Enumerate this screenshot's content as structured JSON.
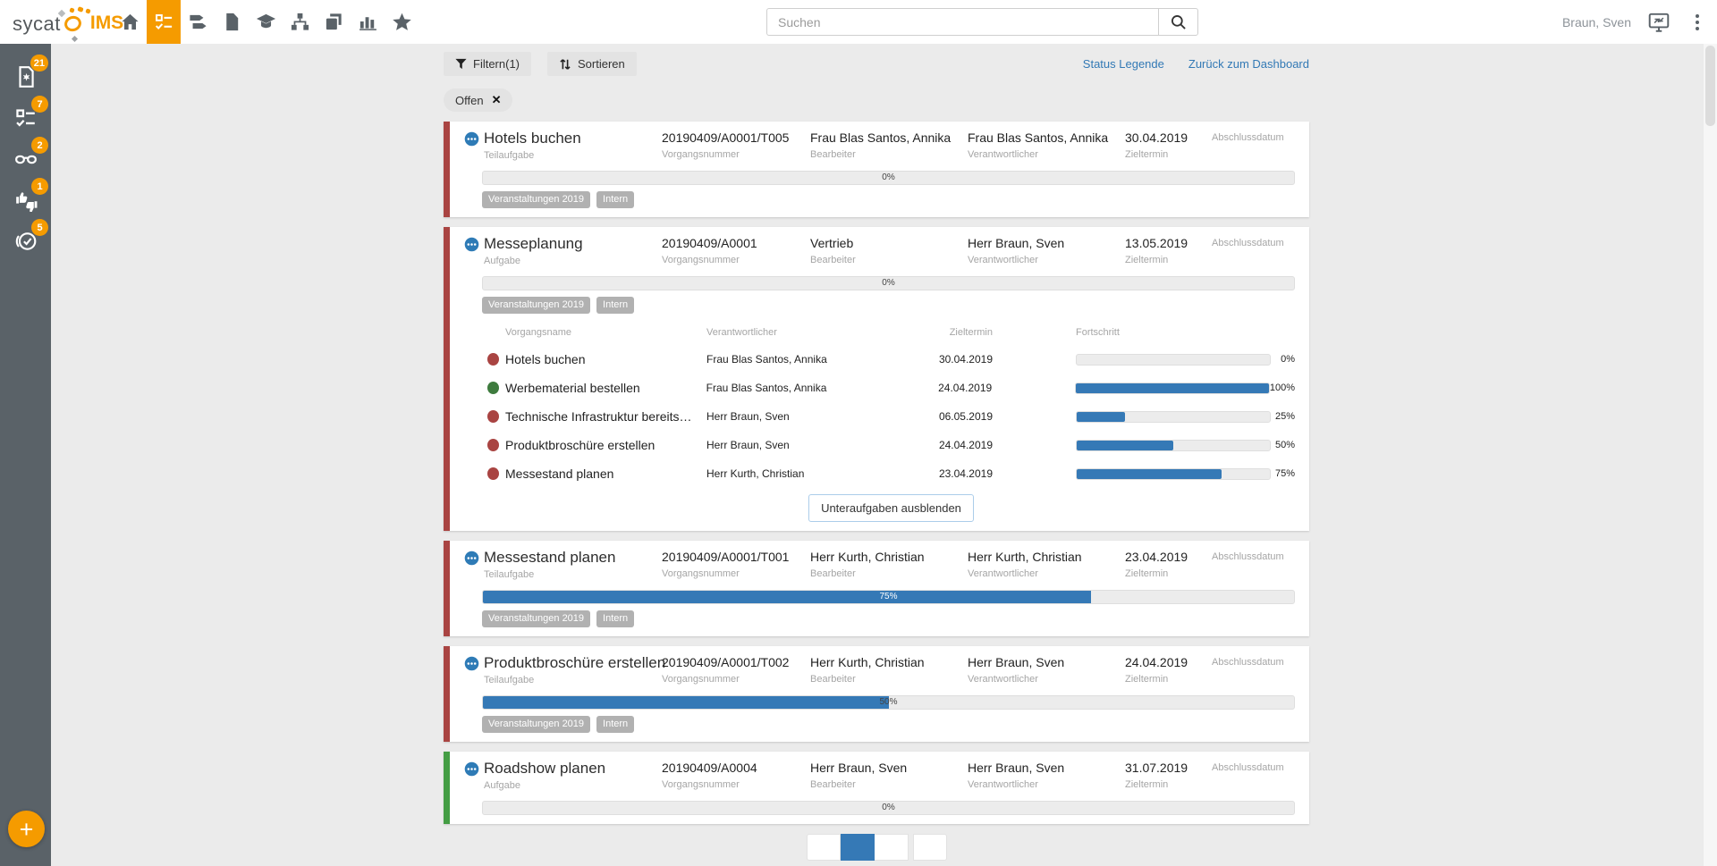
{
  "colors": {
    "accent_orange": "#f59b00",
    "accent_blue": "#3579b6",
    "status_red": "#a94442",
    "status_green": "#3e7b3e",
    "stripe_green": "#449d44",
    "sidebar_gray": "#5a6268"
  },
  "topbar": {
    "logo_part1": "sycat",
    "logo_part2": "IMS",
    "nav": [
      {
        "icon": "home",
        "active": false
      },
      {
        "icon": "tasks",
        "active": true
      },
      {
        "icon": "tags",
        "active": false
      },
      {
        "icon": "document",
        "active": false
      },
      {
        "icon": "education",
        "active": false
      },
      {
        "icon": "orgchart",
        "active": false
      },
      {
        "icon": "copies",
        "active": false
      },
      {
        "icon": "bar-chart",
        "active": false
      },
      {
        "icon": "star",
        "active": false
      }
    ],
    "search_placeholder": "Suchen",
    "user_name": "Braun, Sven"
  },
  "sidebar": {
    "items": [
      {
        "icon": "audit-file",
        "badge": "21"
      },
      {
        "icon": "tasks",
        "badge": "7"
      },
      {
        "icon": "glasses",
        "badge": "2"
      },
      {
        "icon": "thumbs",
        "badge": "1"
      },
      {
        "icon": "approval",
        "badge": "5"
      }
    ],
    "fab_label": "+"
  },
  "toolbar": {
    "filter_label": "Filtern(1)",
    "sort_label": "Sortieren",
    "legend_link": "Status Legende",
    "dashboard_link": "Zurück zum Dashboard",
    "active_filter_chip": "Offen"
  },
  "card_labels": {
    "number": "Vorgangsnummer",
    "editor": "Bearbeiter",
    "responsible": "Verantwortlicher",
    "due": "Zieltermin",
    "completed": "Abschlussdatum"
  },
  "cards": [
    {
      "title": "Hotels buchen",
      "type": "Teilaufgabe",
      "number": "20190409/A0001/T005",
      "editor": "Frau Blas Santos, Annika",
      "responsible": "Frau Blas Santos, Annika",
      "due": "30.04.2019",
      "completed": "",
      "progress": 0,
      "progress_label": "0%",
      "stripe": "red",
      "tags": [
        "Veranstaltungen 2019",
        "Intern"
      ]
    },
    {
      "title": "Messeplanung",
      "type": "Aufgabe",
      "number": "20190409/A0001",
      "editor": "Vertrieb",
      "responsible": "Herr Braun, Sven",
      "due": "13.05.2019",
      "completed": "",
      "progress": 0,
      "progress_label": "0%",
      "stripe": "red",
      "tags": [
        "Veranstaltungen 2019",
        "Intern"
      ],
      "subtasks": {
        "headers": {
          "name": "Vorgangsname",
          "responsible": "Verantwortlicher",
          "due": "Zieltermin",
          "progress": "Fortschritt"
        },
        "rows": [
          {
            "status": "red",
            "name": "Hotels buchen",
            "responsible": "Frau Blas Santos, Annika",
            "due": "30.04.2019",
            "progress": 0,
            "progress_label": "0%"
          },
          {
            "status": "green",
            "name": "Werbematerial bestellen",
            "responsible": "Frau Blas Santos, Annika",
            "due": "24.04.2019",
            "progress": 100,
            "progress_label": "100%"
          },
          {
            "status": "red",
            "name": "Technische Infrastruktur bereits…",
            "responsible": "Herr Braun, Sven",
            "due": "06.05.2019",
            "progress": 25,
            "progress_label": "25%"
          },
          {
            "status": "red",
            "name": "Produktbroschüre erstellen",
            "responsible": "Herr Braun, Sven",
            "due": "24.04.2019",
            "progress": 50,
            "progress_label": "50%"
          },
          {
            "status": "red",
            "name": "Messestand planen",
            "responsible": "Herr Kurth, Christian",
            "due": "23.04.2019",
            "progress": 75,
            "progress_label": "75%"
          }
        ],
        "hide_button": "Unteraufgaben ausblenden"
      }
    },
    {
      "title": "Messestand planen",
      "type": "Teilaufgabe",
      "number": "20190409/A0001/T001",
      "editor": "Herr Kurth, Christian",
      "responsible": "Herr Kurth, Christian",
      "due": "23.04.2019",
      "completed": "",
      "progress": 75,
      "progress_label": "75%",
      "stripe": "red",
      "tags": [
        "Veranstaltungen 2019",
        "Intern"
      ]
    },
    {
      "title": "Produktbroschüre erstellen",
      "type": "Teilaufgabe",
      "number": "20190409/A0001/T002",
      "editor": "Herr Kurth, Christian",
      "responsible": "Herr Braun, Sven",
      "due": "24.04.2019",
      "completed": "",
      "progress": 50,
      "progress_label": "50%",
      "stripe": "red",
      "tags": [
        "Veranstaltungen 2019",
        "Intern"
      ]
    },
    {
      "title": "Roadshow planen",
      "type": "Aufgabe",
      "number": "20190409/A0004",
      "editor": "Herr Braun, Sven",
      "responsible": "Herr Braun, Sven",
      "due": "31.07.2019",
      "completed": "",
      "progress": 0,
      "progress_label": "0%",
      "stripe": "green",
      "tags": []
    }
  ],
  "pagination": {
    "pages": [
      {
        "active": false
      },
      {
        "active": true
      },
      {
        "active": false
      },
      {
        "active": false
      }
    ]
  }
}
